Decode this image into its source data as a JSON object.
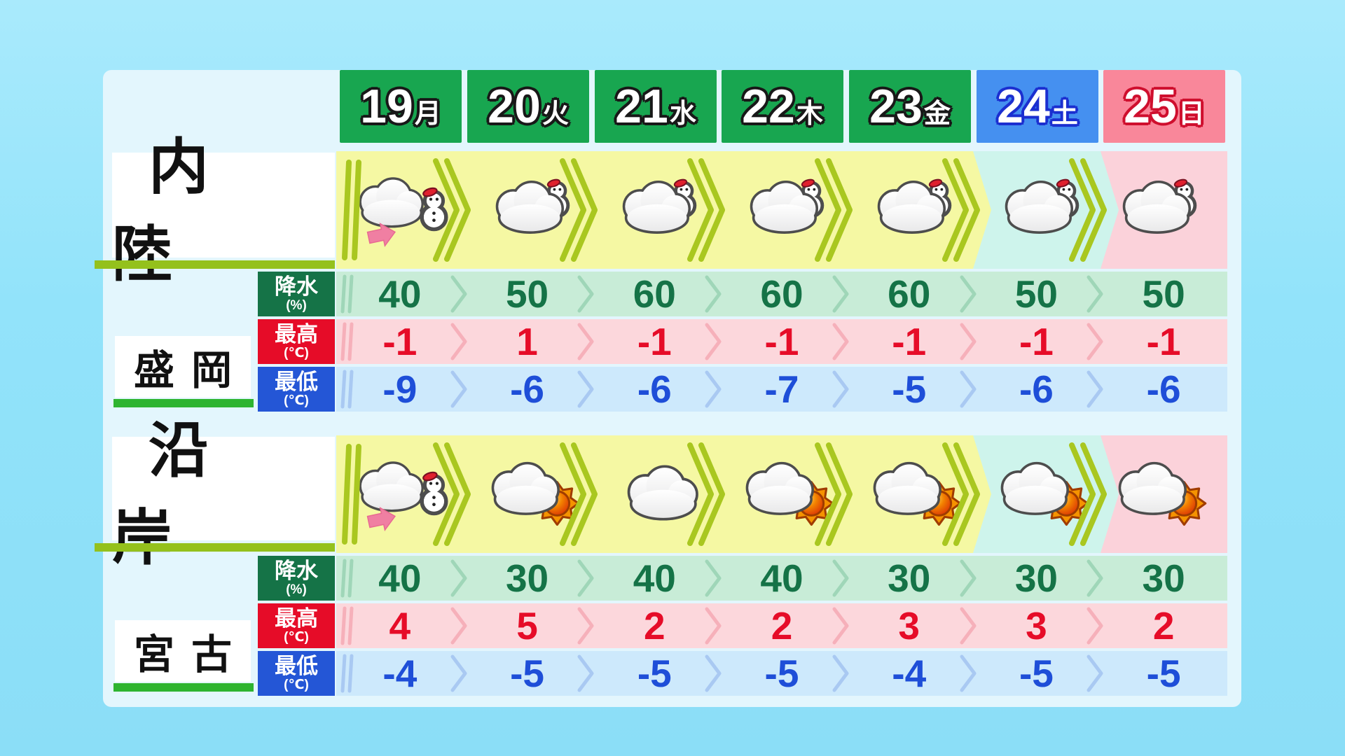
{
  "chart_data": {
    "type": "table",
    "columns": [
      {
        "date": 19,
        "dow": "月"
      },
      {
        "date": 20,
        "dow": "火"
      },
      {
        "date": 21,
        "dow": "水"
      },
      {
        "date": 22,
        "dow": "木"
      },
      {
        "date": 23,
        "dow": "金"
      },
      {
        "date": 24,
        "dow": "土"
      },
      {
        "date": 25,
        "dow": "日"
      }
    ],
    "sections": [
      {
        "region": "内陸",
        "city": "盛岡",
        "icons": [
          "cloud-snowman-arrow",
          "cloud-snowman",
          "cloud-snowman",
          "cloud-snowman",
          "cloud-snowman",
          "cloud-snowman",
          "cloud-snowman"
        ],
        "precipitation_pct": [
          40,
          50,
          60,
          60,
          60,
          50,
          50
        ],
        "high_c": [
          -1,
          1,
          -1,
          -1,
          -1,
          -1,
          -1
        ],
        "low_c": [
          -9,
          -6,
          -6,
          -7,
          -5,
          -6,
          -6
        ]
      },
      {
        "region": "沿岸",
        "city": "宮古",
        "icons": [
          "cloud-snowman-arrow",
          "cloud-sun",
          "cloud",
          "cloud-sun",
          "cloud-sun",
          "cloud-sun",
          "cloud-sun"
        ],
        "precipitation_pct": [
          40,
          30,
          40,
          40,
          30,
          30,
          30
        ],
        "high_c": [
          4,
          5,
          2,
          2,
          3,
          3,
          2
        ],
        "low_c": [
          -4,
          -5,
          -5,
          -5,
          -4,
          -5,
          -5
        ]
      }
    ]
  },
  "row_labels": {
    "precip": "降水",
    "precip_unit": "(%)",
    "high": "最高",
    "high_unit": "(℃)",
    "low": "最低",
    "low_unit": "(℃)"
  },
  "colors": {
    "background": "#92e3fa",
    "panel": "#e3f6fd",
    "header_weekday": "#18a650",
    "header_saturday": "#4590f0",
    "header_sunday": "#f9879a",
    "icon_band_weekday": "#f5f8a3",
    "icon_band_saturday": "#cef4ec",
    "icon_band_sunday": "#fbd2da",
    "precip_band": "#c8ecd7",
    "precip_text": "#157347",
    "high_band": "#fcd7dc",
    "high_text": "#e60c28",
    "low_band": "#cde9fc",
    "low_text": "#1e4ed8",
    "region_underline": "#94c11c",
    "city_underline": "#2eb430",
    "chevron_icon_band": "#a9c720"
  }
}
